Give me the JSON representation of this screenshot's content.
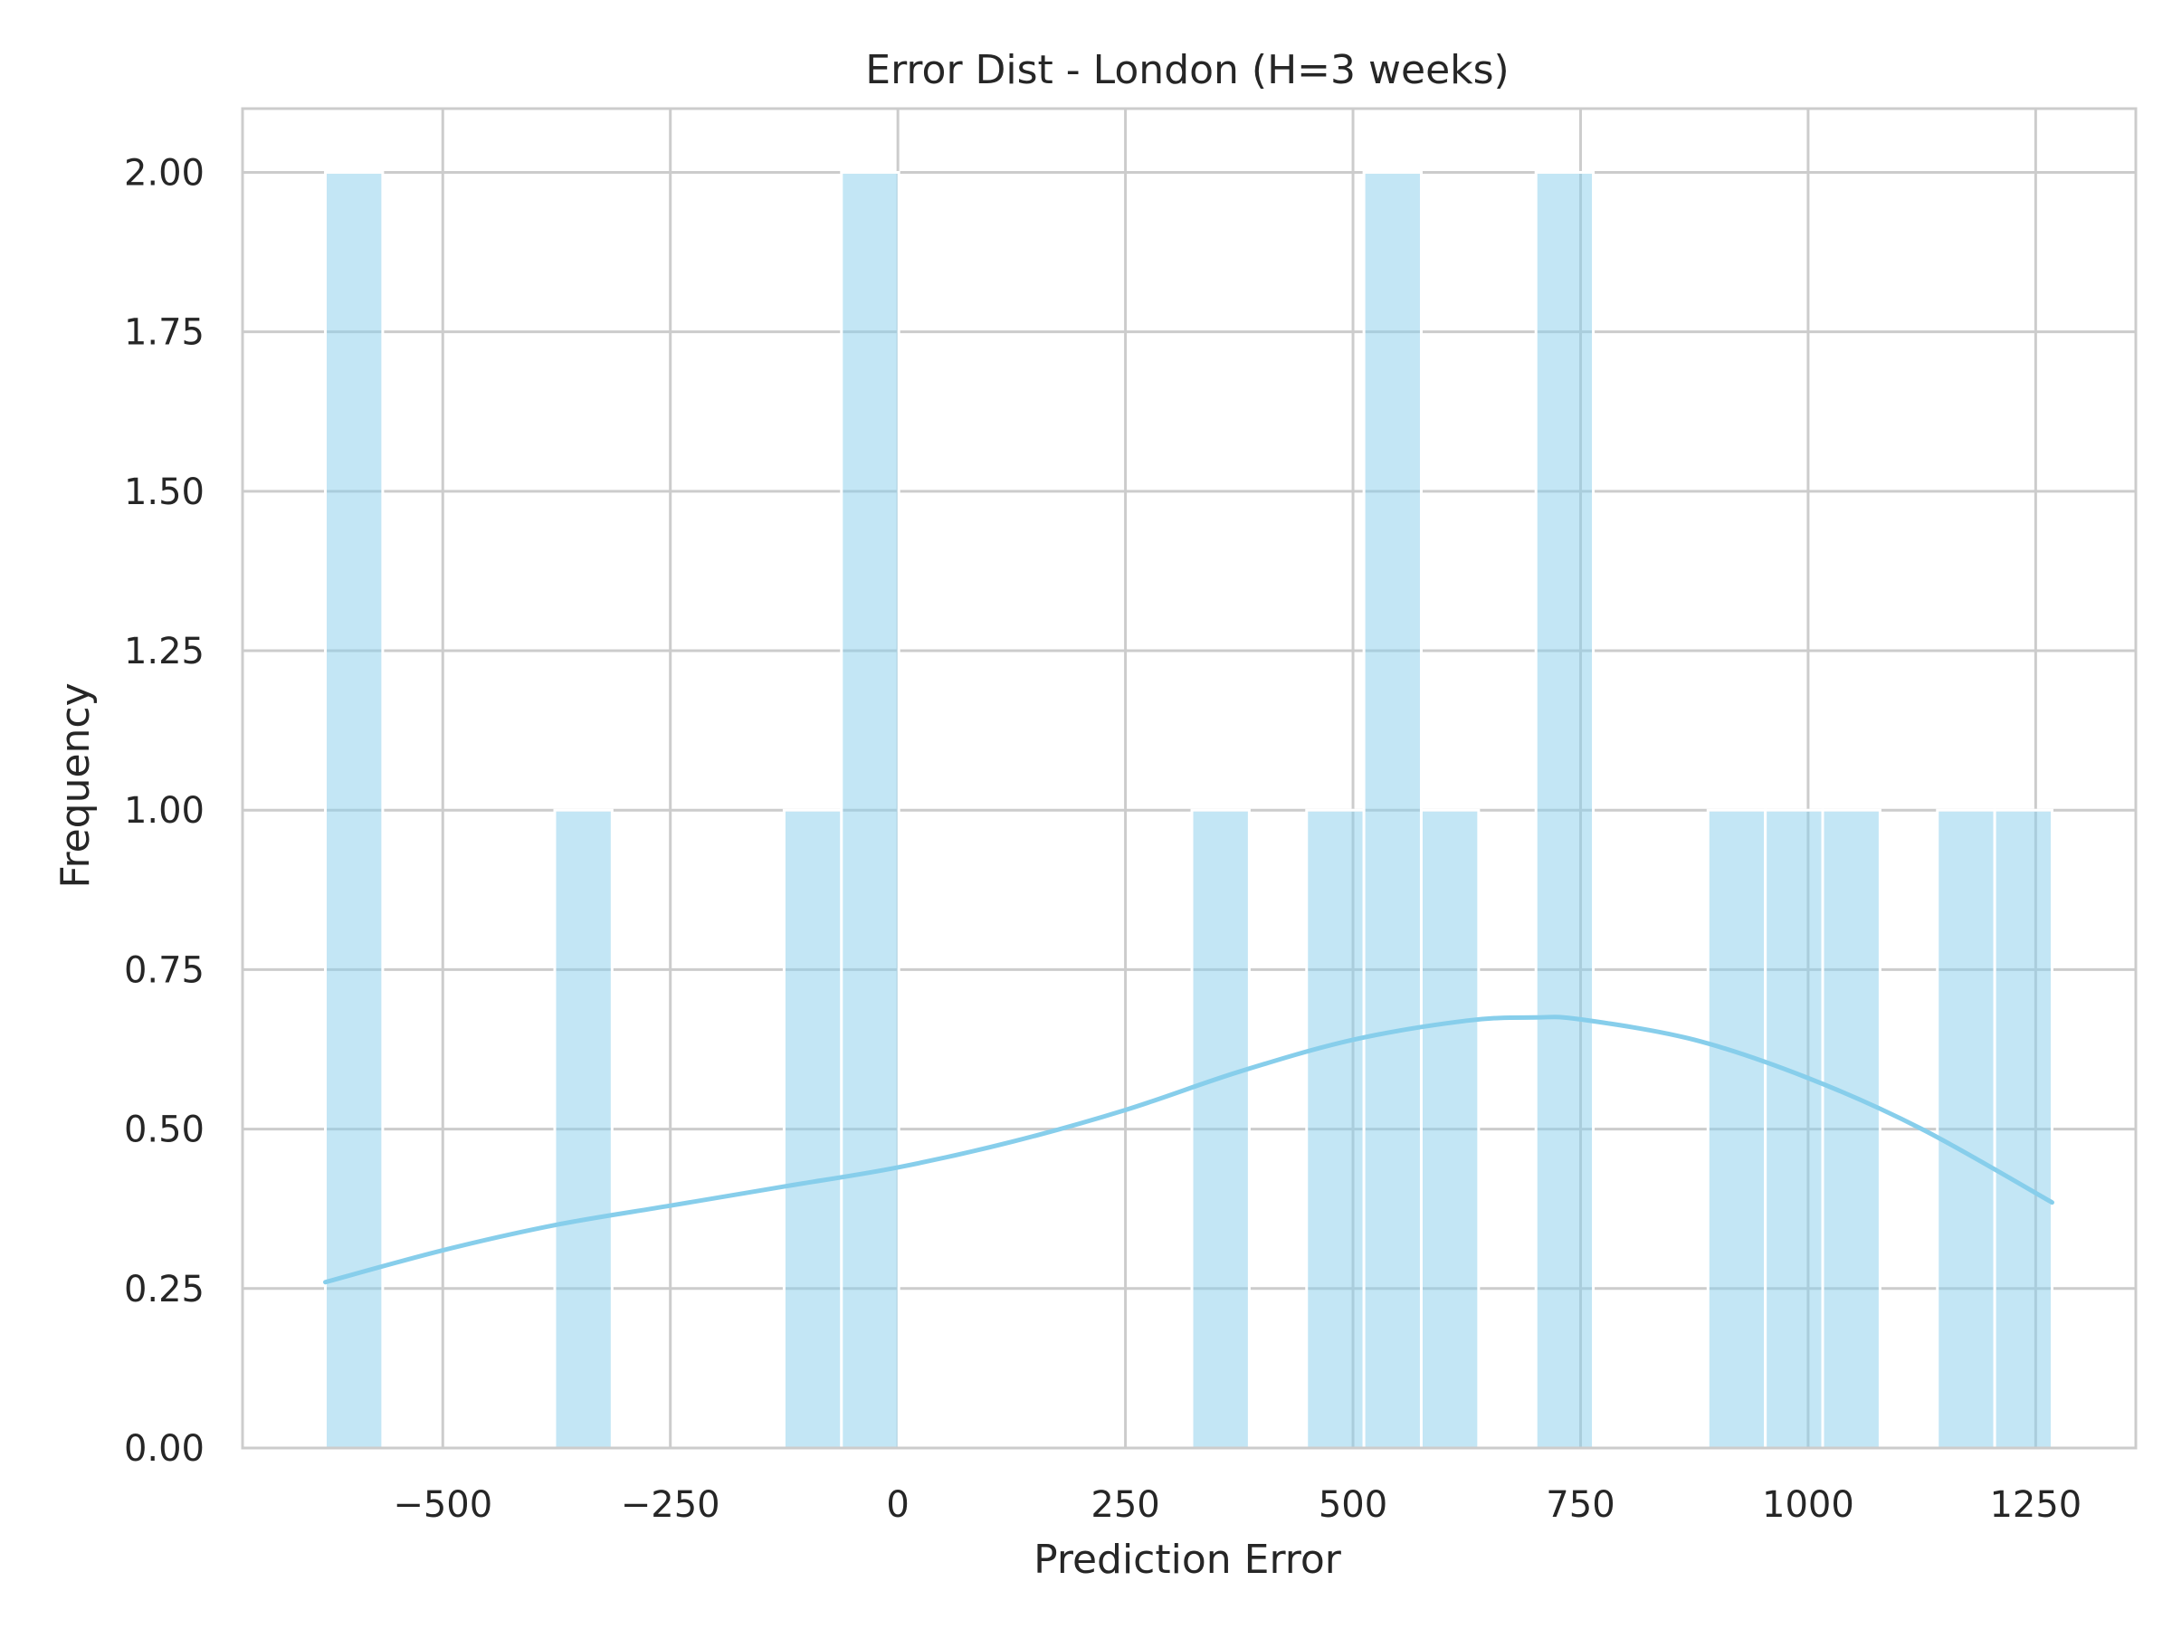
{
  "chart_data": {
    "type": "bar",
    "title": "Error Dist - London (H=3 weeks)",
    "xlabel": "Prediction Error",
    "ylabel": "Frequency",
    "xlim": [
      -720,
      1360
    ],
    "ylim": [
      0,
      2.1
    ],
    "xticks": [
      -500,
      -250,
      0,
      250,
      500,
      750,
      1000,
      1250
    ],
    "xtick_labels": [
      "−500",
      "−250",
      "0",
      "250",
      "500",
      "750",
      "1000",
      "1250"
    ],
    "yticks": [
      0,
      0.25,
      0.5,
      0.75,
      1.0,
      1.25,
      1.5,
      1.75,
      2.0
    ],
    "ytick_labels": [
      "0.00",
      "0.25",
      "0.50",
      "0.75",
      "1.00",
      "1.25",
      "1.50",
      "1.75",
      "2.00"
    ],
    "grid": true,
    "bar_color": "#87ceeb",
    "kde_color": "#87ceeb",
    "bins": [
      {
        "x0": -629,
        "x1": -566,
        "count": 2
      },
      {
        "x0": -377,
        "x1": -314,
        "count": 1
      },
      {
        "x0": -125,
        "x1": -62,
        "count": 1
      },
      {
        "x0": -62,
        "x1": 1,
        "count": 2
      },
      {
        "x0": 323,
        "x1": 386,
        "count": 1
      },
      {
        "x0": 449,
        "x1": 512,
        "count": 1
      },
      {
        "x0": 512,
        "x1": 575,
        "count": 2
      },
      {
        "x0": 575,
        "x1": 638,
        "count": 1
      },
      {
        "x0": 701,
        "x1": 764,
        "count": 2
      },
      {
        "x0": 890,
        "x1": 953,
        "count": 1
      },
      {
        "x0": 953,
        "x1": 1016,
        "count": 1
      },
      {
        "x0": 1016,
        "x1": 1079,
        "count": 1
      },
      {
        "x0": 1142,
        "x1": 1205,
        "count": 1
      },
      {
        "x0": 1205,
        "x1": 1268,
        "count": 1
      }
    ],
    "kde": {
      "x": [
        -629,
        -500,
        -375,
        -250,
        -125,
        0,
        125,
        250,
        375,
        500,
        625,
        700,
        750,
        875,
        1000,
        1125,
        1268
      ],
      "y": [
        0.26,
        0.31,
        0.35,
        0.38,
        0.41,
        0.44,
        0.48,
        0.53,
        0.59,
        0.64,
        0.67,
        0.675,
        0.672,
        0.64,
        0.58,
        0.5,
        0.385
      ]
    }
  }
}
